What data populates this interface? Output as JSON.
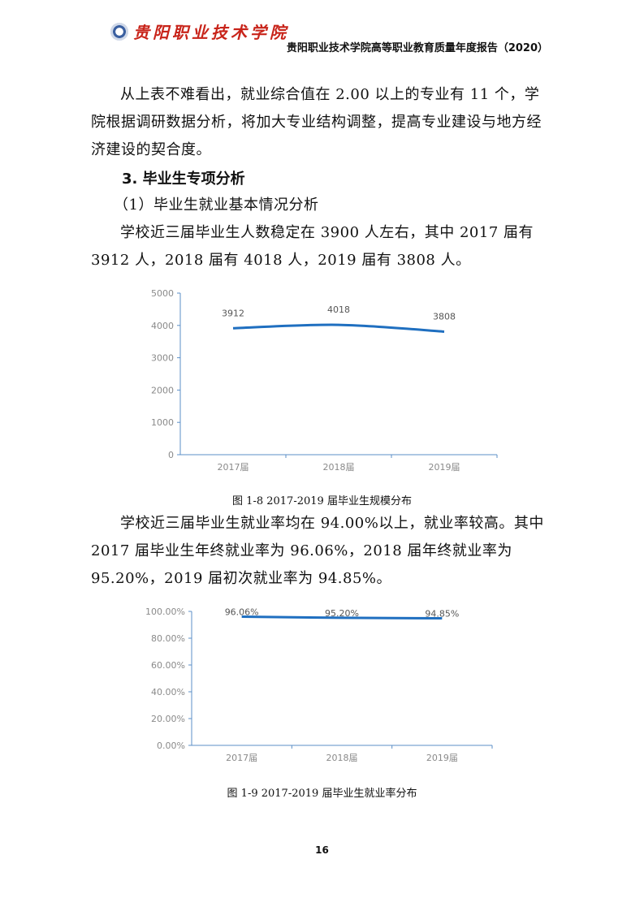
{
  "header": {
    "logo_text": "贵阳职业技术学院",
    "title": "贵阳职业技术学院高等职业教育质量年度报告（2020）"
  },
  "body": {
    "para1": "从上表不难看出，就业综合值在 2.00 以上的专业有 11 个，学院根据调研数据分析，将加大专业结构调整，提高专业建设与地方经济建设的契合度。",
    "heading3": "3. 毕业生专项分析",
    "subheading1": "（1）毕业生就业基本情况分析",
    "para2": "学校近三届毕业生人数稳定在 3900 人左右，其中 2017 届有 3912 人，2018 届有 4018 人，2019 届有 3808 人。",
    "caption1": "图 1-8  2017-2019 届毕业生规模分布",
    "para3": "学校近三届毕业生就业率均在 94.00%以上，就业率较高。其中 2017 届毕业生年终就业率为 96.06%，2018 届年终就业率为 95.20%，2019 届初次就业率为 94.85%。",
    "caption2": "图 1-9  2017-2019 届毕业生就业率分布"
  },
  "page_number": "16",
  "chart_data": [
    {
      "type": "line",
      "categories": [
        "2017届",
        "2018届",
        "2019届"
      ],
      "values": [
        3912,
        4018,
        3808
      ],
      "data_labels": [
        "3912",
        "4018",
        "3808"
      ],
      "ylim": [
        0,
        5000
      ],
      "yticks": [
        "0",
        "1000",
        "2000",
        "3000",
        "4000",
        "5000"
      ],
      "smooth": true,
      "grid": false,
      "color": "#1f6fc0"
    },
    {
      "type": "line",
      "categories": [
        "2017届",
        "2018届",
        "2019届"
      ],
      "values": [
        96.06,
        95.2,
        94.85
      ],
      "data_labels": [
        "96.06%",
        "95.20%",
        "94.85%"
      ],
      "ylim": [
        0,
        100
      ],
      "yticks": [
        "0.00%",
        "20.00%",
        "40.00%",
        "60.00%",
        "80.00%",
        "100.00%"
      ],
      "grid": false,
      "color": "#1f6fc0"
    }
  ]
}
